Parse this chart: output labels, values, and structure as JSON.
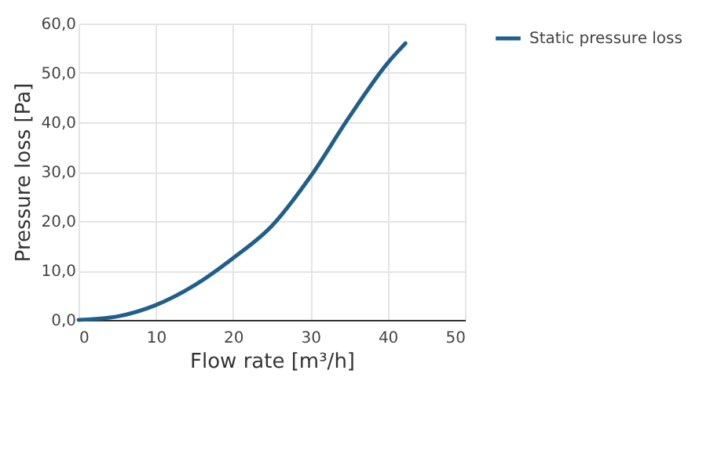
{
  "chart_data": {
    "type": "line",
    "xlabel": "Flow rate [m³/h]",
    "ylabel": "Pressure loss [Pa]",
    "series": [
      {
        "name": "Static pressure loss",
        "color": "#1f5f8b",
        "x": [
          0,
          5,
          10,
          15,
          20,
          25,
          30,
          35,
          40,
          42.3
        ],
        "values": [
          0,
          0.7,
          3,
          7,
          12.5,
          19,
          29,
          41,
          52,
          56
        ]
      }
    ],
    "xlim": [
      0,
      50
    ],
    "xticks": [
      0,
      10,
      20,
      30,
      40,
      50
    ],
    "ylim": [
      0,
      60
    ],
    "yticks": [
      {
        "value": 0,
        "label": "0,0"
      },
      {
        "value": 10,
        "label": "10,0"
      },
      {
        "value": 20,
        "label": "20,0"
      },
      {
        "value": 30,
        "label": "30,0"
      },
      {
        "value": 40,
        "label": "40,0"
      },
      {
        "value": 50,
        "label": "50,0"
      },
      {
        "value": 60,
        "label": "60,0"
      }
    ],
    "grid": true,
    "legend": "right",
    "marker": "none",
    "line_style": "solid"
  }
}
